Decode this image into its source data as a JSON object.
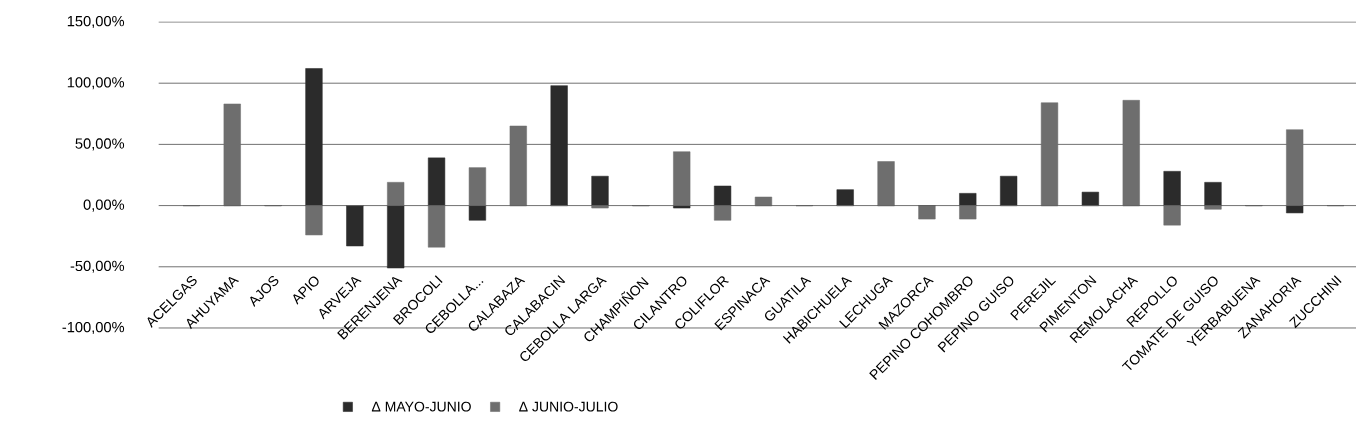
{
  "chart_data": {
    "type": "bar",
    "categories": [
      "ACELGAS",
      "AHUYAMA",
      "AJOS",
      "APIO",
      "ARVEJA",
      "BERENJENA",
      "BROCOLI",
      "CEBOLLA...",
      "CALABAZA",
      "CALABACIN",
      "CEBOLLA LARGA",
      "CHAMPIÑON",
      "CILANTRO",
      "COLIFLOR",
      "ESPINACA",
      "GUATILA",
      "HABICHUELA",
      "LECHUGA",
      "MAZORCA",
      "PEPINO COHOMBRO",
      "PEPINO GUISO",
      "PEREJIL",
      "PIMENTON",
      "REMOLACHA",
      "REPOLLO",
      "TOMATE DE GUISO",
      "YERBABUENA",
      "ZANAHORIA",
      "ZUCCHINI"
    ],
    "series": [
      {
        "name": "Δ MAYO-JUNIO",
        "color": "#2b2b2b",
        "values": [
          0,
          0,
          0,
          112,
          -33,
          -51,
          39,
          -12,
          0,
          98,
          24,
          0,
          -2,
          16,
          0,
          0,
          13,
          0,
          0,
          10,
          24,
          0,
          11,
          0,
          28,
          19,
          0,
          -6,
          0
        ]
      },
      {
        "name": "Δ JUNIO-JULIO",
        "color": "#6e6e6e",
        "values": [
          0,
          83,
          0,
          -24,
          0,
          19,
          -34,
          31,
          65,
          0,
          -2,
          0,
          44,
          -12,
          7,
          0,
          0,
          36,
          -11,
          -11,
          0,
          84,
          0,
          86,
          -16,
          -3,
          0,
          62,
          0
        ]
      }
    ],
    "ylim": [
      -100,
      150
    ],
    "yticks": [
      {
        "value": -100,
        "label": "-100,00%"
      },
      {
        "value": -50,
        "label": "-50,00%"
      },
      {
        "value": 0,
        "label": "0,00%"
      },
      {
        "value": 50,
        "label": "50,00%"
      },
      {
        "value": 100,
        "label": "100,00%"
      },
      {
        "value": 150,
        "label": "150,00%"
      }
    ],
    "grid": "y",
    "legend": "bottom"
  }
}
